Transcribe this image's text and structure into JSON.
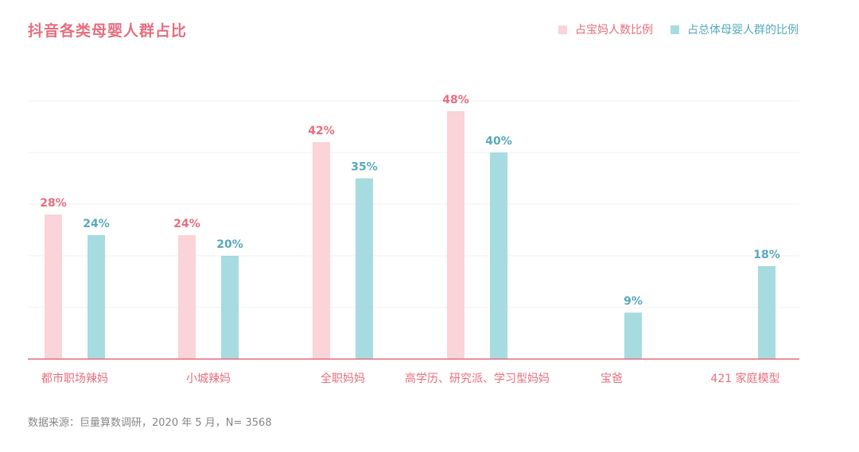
{
  "colors": {
    "title": "#e8707f",
    "series1_fill": "#fad4d8",
    "series1_label": "#e8707f",
    "series2_fill": "#a6dce0",
    "series2_label": "#5aabc0",
    "axis": "#e8707f",
    "grid": "#f0f0f0",
    "category_label": "#e8707f"
  },
  "source_note": "数据来源：巨量算数调研，2020 年 5 月，N= 3568",
  "chart_data": {
    "type": "bar",
    "title": "抖音各类母婴人群占比",
    "categories": [
      "都市职场辣妈",
      "小城辣妈",
      "全职妈妈",
      "高学历、研究派、学习型妈妈",
      "宝爸",
      "421 家庭模型"
    ],
    "series": [
      {
        "name": "占宝妈人数比例",
        "values": [
          28,
          24,
          42,
          48,
          null,
          null
        ],
        "labels": [
          "28%",
          "24%",
          "42%",
          "48%",
          "",
          ""
        ]
      },
      {
        "name": "占总体母婴人群的比例",
        "values": [
          24,
          20,
          35,
          40,
          9,
          18
        ],
        "labels": [
          "24%",
          "20%",
          "35%",
          "40%",
          "9%",
          "18%"
        ]
      }
    ],
    "ylim": [
      0,
      50
    ],
    "grid": true,
    "legend_position": "top-right",
    "xlabel": "",
    "ylabel": ""
  }
}
